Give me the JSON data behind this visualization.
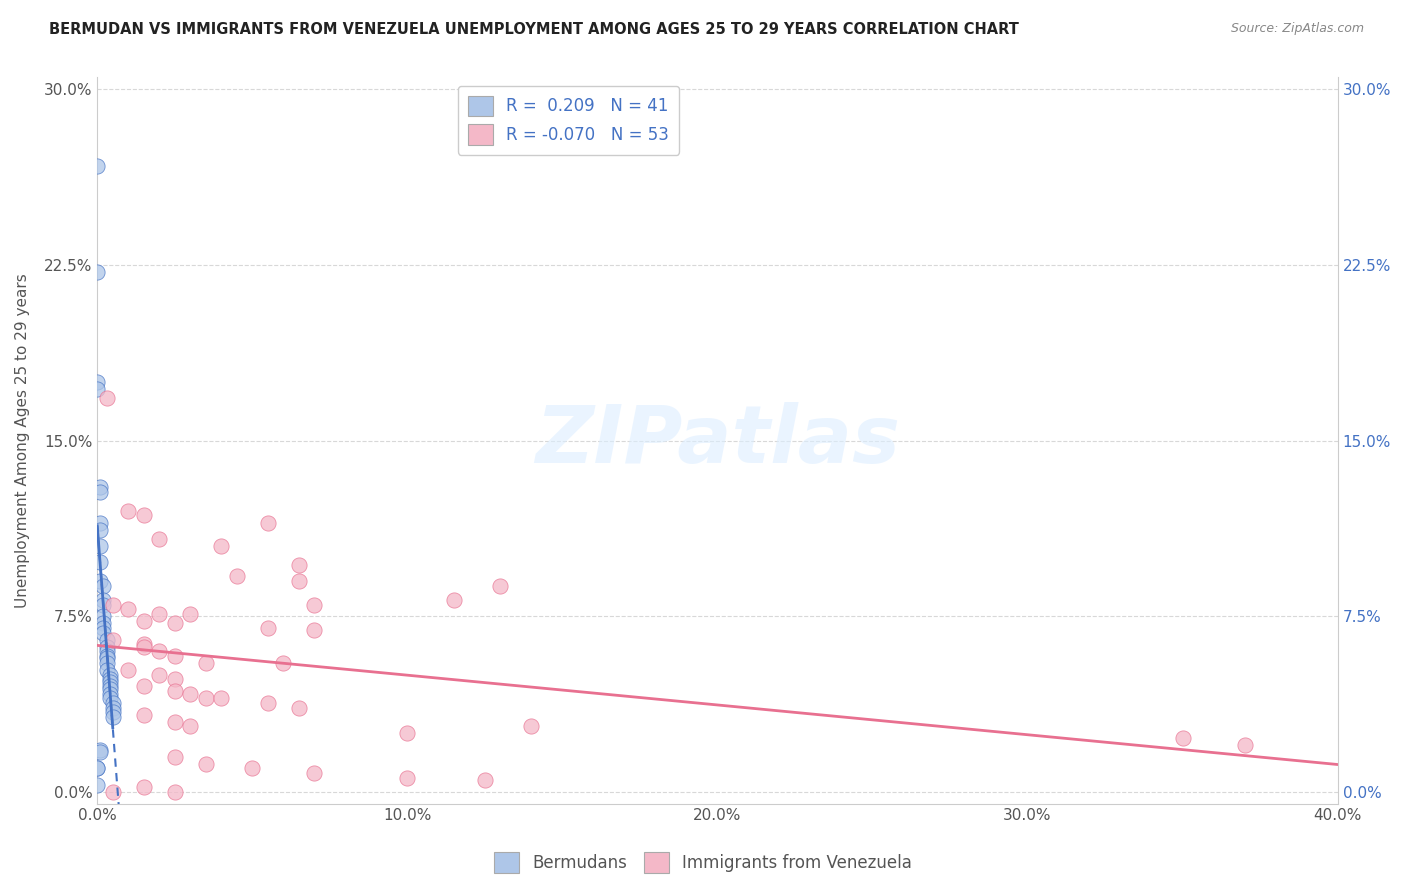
{
  "title": "BERMUDAN VS IMMIGRANTS FROM VENEZUELA UNEMPLOYMENT AMONG AGES 25 TO 29 YEARS CORRELATION CHART",
  "source": "Source: ZipAtlas.com",
  "xlabel_ticks": [
    "0.0%",
    "10.0%",
    "20.0%",
    "30.0%",
    "40.0%"
  ],
  "ylabel_ticks": [
    "0.0%",
    "7.5%",
    "15.0%",
    "22.5%",
    "30.0%"
  ],
  "xlim": [
    0.0,
    0.4
  ],
  "ylim": [
    -0.005,
    0.305
  ],
  "ylabel": "Unemployment Among Ages 25 to 29 years",
  "legend_labels": [
    "Bermudans",
    "Immigrants from Venezuela"
  ],
  "r_blue": 0.209,
  "n_blue": 41,
  "r_pink": -0.07,
  "n_pink": 53,
  "blue_color": "#aec6e8",
  "pink_color": "#f4b8c8",
  "blue_line_color": "#4472c4",
  "pink_line_color": "#e87090",
  "blue_scatter": [
    [
      0.0,
      0.267
    ],
    [
      0.0,
      0.222
    ],
    [
      0.0,
      0.175
    ],
    [
      0.0,
      0.172
    ],
    [
      0.001,
      0.13
    ],
    [
      0.001,
      0.128
    ],
    [
      0.001,
      0.115
    ],
    [
      0.001,
      0.112
    ],
    [
      0.001,
      0.105
    ],
    [
      0.001,
      0.098
    ],
    [
      0.001,
      0.09
    ],
    [
      0.002,
      0.088
    ],
    [
      0.002,
      0.082
    ],
    [
      0.002,
      0.08
    ],
    [
      0.002,
      0.075
    ],
    [
      0.002,
      0.072
    ],
    [
      0.002,
      0.07
    ],
    [
      0.002,
      0.068
    ],
    [
      0.003,
      0.065
    ],
    [
      0.003,
      0.062
    ],
    [
      0.003,
      0.06
    ],
    [
      0.003,
      0.058
    ],
    [
      0.003,
      0.057
    ],
    [
      0.003,
      0.055
    ],
    [
      0.003,
      0.052
    ],
    [
      0.004,
      0.05
    ],
    [
      0.004,
      0.048
    ],
    [
      0.004,
      0.047
    ],
    [
      0.004,
      0.045
    ],
    [
      0.004,
      0.044
    ],
    [
      0.004,
      0.042
    ],
    [
      0.004,
      0.04
    ],
    [
      0.005,
      0.038
    ],
    [
      0.005,
      0.036
    ],
    [
      0.005,
      0.034
    ],
    [
      0.005,
      0.032
    ],
    [
      0.001,
      0.018
    ],
    [
      0.001,
      0.017
    ],
    [
      0.0,
      0.01
    ],
    [
      0.0,
      0.01
    ],
    [
      0.0,
      0.003
    ]
  ],
  "pink_scatter": [
    [
      0.003,
      0.168
    ],
    [
      0.01,
      0.12
    ],
    [
      0.015,
      0.118
    ],
    [
      0.055,
      0.115
    ],
    [
      0.02,
      0.108
    ],
    [
      0.04,
      0.105
    ],
    [
      0.065,
      0.097
    ],
    [
      0.045,
      0.092
    ],
    [
      0.065,
      0.09
    ],
    [
      0.13,
      0.088
    ],
    [
      0.115,
      0.082
    ],
    [
      0.07,
      0.08
    ],
    [
      0.005,
      0.08
    ],
    [
      0.01,
      0.078
    ],
    [
      0.02,
      0.076
    ],
    [
      0.03,
      0.076
    ],
    [
      0.015,
      0.073
    ],
    [
      0.025,
      0.072
    ],
    [
      0.055,
      0.07
    ],
    [
      0.07,
      0.069
    ],
    [
      0.005,
      0.065
    ],
    [
      0.015,
      0.063
    ],
    [
      0.015,
      0.062
    ],
    [
      0.02,
      0.06
    ],
    [
      0.025,
      0.058
    ],
    [
      0.035,
      0.055
    ],
    [
      0.06,
      0.055
    ],
    [
      0.01,
      0.052
    ],
    [
      0.02,
      0.05
    ],
    [
      0.025,
      0.048
    ],
    [
      0.015,
      0.045
    ],
    [
      0.025,
      0.043
    ],
    [
      0.03,
      0.042
    ],
    [
      0.035,
      0.04
    ],
    [
      0.04,
      0.04
    ],
    [
      0.055,
      0.038
    ],
    [
      0.065,
      0.036
    ],
    [
      0.015,
      0.033
    ],
    [
      0.025,
      0.03
    ],
    [
      0.03,
      0.028
    ],
    [
      0.14,
      0.028
    ],
    [
      0.1,
      0.025
    ],
    [
      0.35,
      0.023
    ],
    [
      0.37,
      0.02
    ],
    [
      0.025,
      0.015
    ],
    [
      0.035,
      0.012
    ],
    [
      0.05,
      0.01
    ],
    [
      0.07,
      0.008
    ],
    [
      0.1,
      0.006
    ],
    [
      0.125,
      0.005
    ],
    [
      0.015,
      0.002
    ],
    [
      0.005,
      0.0
    ],
    [
      0.025,
      0.0
    ]
  ],
  "watermark": "ZIPatlas",
  "background_color": "#ffffff",
  "grid_color": "#d8d8d8"
}
